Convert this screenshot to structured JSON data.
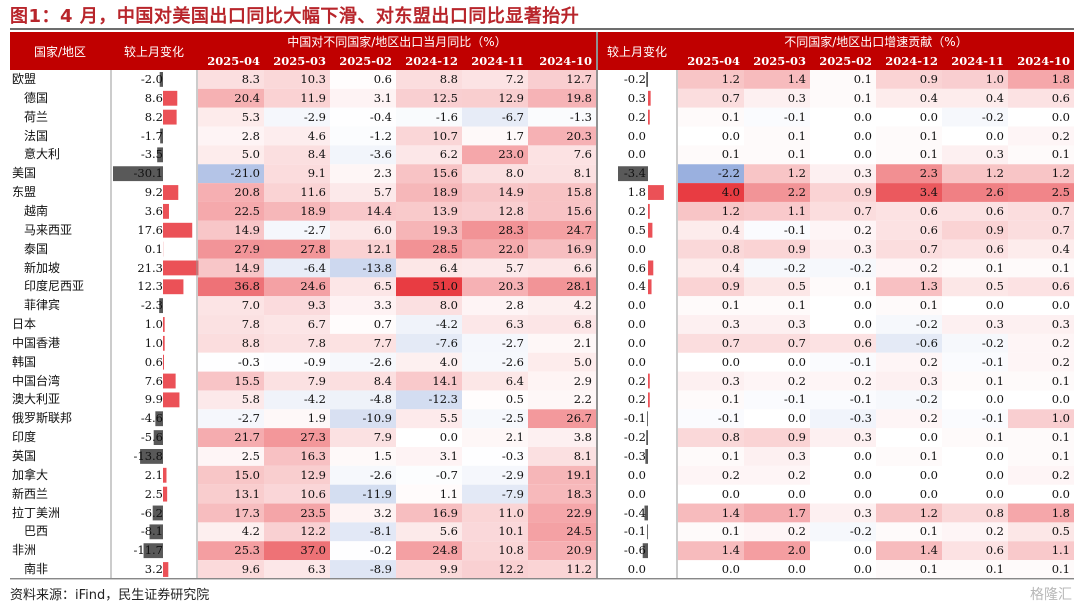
{
  "title": "图1：4 月，中国对美国出口同比大幅下滑、对东盟出口同比显著抬升",
  "source": "资料来源：iFind，民生证券研究院",
  "watermark": "格隆汇",
  "colors": {
    "header": "#c00000",
    "positive": "#e8252b",
    "negative": "#2f63c0",
    "bar_pos": "#e8323a",
    "bar_neg": "#1a1a1a"
  },
  "chart_data": {
    "type": "table",
    "headers": {
      "region": "国家/地区",
      "change1": "较上月变化",
      "group1": "中国对不同国家/地区出口当月同比（%）",
      "change2": "较上月变化",
      "group2": "不同国家/地区出口增速贡献（%）",
      "periods": [
        "2025-04",
        "2025-03",
        "2025-02",
        "2024-12",
        "2024-11",
        "2024-10"
      ]
    },
    "rows": [
      {
        "name": "欧盟",
        "indent": false,
        "change_yoy": -2.0,
        "yoy": [
          8.3,
          10.3,
          0.6,
          8.8,
          7.2,
          12.7
        ],
        "change_contrib": -0.2,
        "contrib": [
          1.2,
          1.4,
          0.1,
          0.9,
          1.0,
          1.8
        ]
      },
      {
        "name": "德国",
        "indent": true,
        "change_yoy": 8.6,
        "yoy": [
          20.4,
          11.9,
          3.1,
          12.5,
          12.9,
          19.8
        ],
        "change_contrib": 0.3,
        "contrib": [
          0.7,
          0.3,
          0.1,
          0.4,
          0.4,
          0.6
        ]
      },
      {
        "name": "荷兰",
        "indent": true,
        "change_yoy": 8.2,
        "yoy": [
          5.3,
          -2.9,
          -0.4,
          -1.6,
          -6.7,
          -1.3
        ],
        "change_contrib": 0.2,
        "contrib": [
          0.1,
          -0.1,
          0.0,
          0.0,
          -0.2,
          0.0
        ]
      },
      {
        "name": "法国",
        "indent": true,
        "change_yoy": -1.7,
        "yoy": [
          2.8,
          4.6,
          -1.2,
          10.7,
          1.7,
          20.3
        ],
        "change_contrib": 0.0,
        "contrib": [
          0.0,
          0.1,
          0.0,
          0.1,
          0.0,
          0.2
        ]
      },
      {
        "name": "意大利",
        "indent": true,
        "change_yoy": -3.5,
        "yoy": [
          5.0,
          8.4,
          -3.6,
          6.2,
          23.0,
          7.6
        ],
        "change_contrib": 0.0,
        "contrib": [
          0.1,
          0.1,
          0.0,
          0.1,
          0.3,
          0.1
        ]
      },
      {
        "name": "美国",
        "indent": false,
        "change_yoy": -30.1,
        "yoy": [
          -21.0,
          9.1,
          2.3,
          15.6,
          8.0,
          8.1
        ],
        "change_contrib": -3.4,
        "contrib": [
          -2.2,
          1.2,
          0.3,
          2.3,
          1.2,
          1.2
        ]
      },
      {
        "name": "东盟",
        "indent": false,
        "change_yoy": 9.2,
        "yoy": [
          20.8,
          11.6,
          5.7,
          18.9,
          14.9,
          15.8
        ],
        "change_contrib": 1.8,
        "contrib": [
          4.0,
          2.2,
          0.9,
          3.4,
          2.6,
          2.5
        ]
      },
      {
        "name": "越南",
        "indent": true,
        "change_yoy": 3.6,
        "yoy": [
          22.5,
          18.9,
          14.4,
          13.9,
          12.8,
          15.6
        ],
        "change_contrib": 0.2,
        "contrib": [
          1.2,
          1.1,
          0.7,
          0.6,
          0.6,
          0.7
        ]
      },
      {
        "name": "马来西亚",
        "indent": true,
        "change_yoy": 17.6,
        "yoy": [
          14.9,
          -2.7,
          6.0,
          19.3,
          28.3,
          24.7
        ],
        "change_contrib": 0.5,
        "contrib": [
          0.4,
          -0.1,
          0.2,
          0.6,
          0.9,
          0.7
        ]
      },
      {
        "name": "泰国",
        "indent": true,
        "change_yoy": 0.1,
        "yoy": [
          27.9,
          27.8,
          12.1,
          28.5,
          22.0,
          16.9
        ],
        "change_contrib": 0.0,
        "contrib": [
          0.8,
          0.9,
          0.3,
          0.7,
          0.6,
          0.4
        ]
      },
      {
        "name": "新加坡",
        "indent": true,
        "change_yoy": 21.3,
        "yoy": [
          14.9,
          -6.4,
          -13.8,
          6.4,
          5.7,
          6.6
        ],
        "change_contrib": 0.6,
        "contrib": [
          0.4,
          -0.2,
          -0.2,
          0.2,
          0.1,
          0.1
        ]
      },
      {
        "name": "印度尼西亚",
        "indent": true,
        "change_yoy": 12.3,
        "yoy": [
          36.8,
          24.6,
          6.5,
          51.0,
          20.3,
          28.1
        ],
        "change_contrib": 0.4,
        "contrib": [
          0.9,
          0.5,
          0.1,
          1.3,
          0.5,
          0.6
        ]
      },
      {
        "name": "菲律宾",
        "indent": true,
        "change_yoy": -2.3,
        "yoy": [
          7.0,
          9.3,
          3.3,
          8.0,
          2.8,
          4.2
        ],
        "change_contrib": 0.0,
        "contrib": [
          0.1,
          0.1,
          0.0,
          0.1,
          0.0,
          0.0
        ]
      },
      {
        "name": "日本",
        "indent": false,
        "change_yoy": 1.0,
        "yoy": [
          7.8,
          6.7,
          0.7,
          -4.2,
          6.3,
          6.8
        ],
        "change_contrib": 0.0,
        "contrib": [
          0.3,
          0.3,
          0.0,
          -0.2,
          0.3,
          0.3
        ]
      },
      {
        "name": "中国香港",
        "indent": false,
        "change_yoy": 1.0,
        "yoy": [
          8.8,
          7.8,
          7.7,
          -7.6,
          -2.7,
          2.1
        ],
        "change_contrib": 0.0,
        "contrib": [
          0.7,
          0.7,
          0.6,
          -0.6,
          -0.2,
          0.2
        ]
      },
      {
        "name": "韩国",
        "indent": false,
        "change_yoy": 0.6,
        "yoy": [
          -0.3,
          -0.9,
          -2.6,
          4.0,
          -2.6,
          5.0
        ],
        "change_contrib": 0.0,
        "contrib": [
          0.0,
          0.0,
          -0.1,
          0.2,
          -0.1,
          0.2
        ]
      },
      {
        "name": "中国台湾",
        "indent": false,
        "change_yoy": 7.6,
        "yoy": [
          15.5,
          7.9,
          8.4,
          14.1,
          6.4,
          2.9
        ],
        "change_contrib": 0.2,
        "contrib": [
          0.3,
          0.2,
          0.2,
          0.3,
          0.1,
          0.1
        ]
      },
      {
        "name": "澳大利亚",
        "indent": false,
        "change_yoy": 9.9,
        "yoy": [
          5.8,
          -4.2,
          -4.8,
          -12.3,
          0.5,
          2.2
        ],
        "change_contrib": 0.2,
        "contrib": [
          0.1,
          -0.1,
          -0.1,
          -0.2,
          0.0,
          0.0
        ]
      },
      {
        "name": "俄罗斯联邦",
        "indent": false,
        "change_yoy": -4.6,
        "yoy": [
          -2.7,
          1.9,
          -10.9,
          5.5,
          -2.5,
          26.7
        ],
        "change_contrib": -0.1,
        "contrib": [
          -0.1,
          0.0,
          -0.3,
          0.2,
          -0.1,
          1.0
        ]
      },
      {
        "name": "印度",
        "indent": false,
        "change_yoy": -5.6,
        "yoy": [
          21.7,
          27.3,
          7.9,
          0.0,
          2.1,
          3.8
        ],
        "change_contrib": -0.2,
        "contrib": [
          0.8,
          0.9,
          0.3,
          0.0,
          0.1,
          0.1
        ]
      },
      {
        "name": "英国",
        "indent": false,
        "change_yoy": -13.8,
        "yoy": [
          2.5,
          16.3,
          1.5,
          3.1,
          -0.3,
          8.1
        ],
        "change_contrib": -0.3,
        "contrib": [
          0.1,
          0.3,
          0.0,
          0.1,
          0.0,
          0.1
        ]
      },
      {
        "name": "加拿大",
        "indent": false,
        "change_yoy": 2.1,
        "yoy": [
          15.0,
          12.9,
          -2.6,
          -0.7,
          -2.9,
          19.1
        ],
        "change_contrib": 0.0,
        "contrib": [
          0.2,
          0.2,
          0.0,
          0.0,
          0.0,
          0.2
        ]
      },
      {
        "name": "新西兰",
        "indent": false,
        "change_yoy": 2.5,
        "yoy": [
          13.1,
          10.6,
          -11.9,
          1.1,
          -7.9,
          18.3
        ],
        "change_contrib": 0.0,
        "contrib": [
          0.0,
          0.0,
          0.0,
          0.0,
          0.0,
          0.0
        ]
      },
      {
        "name": "拉丁美洲",
        "indent": false,
        "change_yoy": -6.2,
        "yoy": [
          17.3,
          23.5,
          3.2,
          16.9,
          11.0,
          22.9
        ],
        "change_contrib": -0.4,
        "contrib": [
          1.4,
          1.7,
          0.3,
          1.2,
          0.8,
          1.8
        ]
      },
      {
        "name": "巴西",
        "indent": true,
        "change_yoy": -8.1,
        "yoy": [
          4.2,
          12.2,
          -8.1,
          5.6,
          10.1,
          24.5
        ],
        "change_contrib": -0.1,
        "contrib": [
          0.1,
          0.2,
          -0.2,
          0.1,
          0.2,
          0.5
        ]
      },
      {
        "name": "非洲",
        "indent": false,
        "change_yoy": -11.7,
        "yoy": [
          25.3,
          37.0,
          -0.2,
          24.8,
          10.8,
          20.9
        ],
        "change_contrib": -0.6,
        "contrib": [
          1.4,
          2.0,
          0.0,
          1.4,
          0.6,
          1.1
        ]
      },
      {
        "name": "南非",
        "indent": true,
        "change_yoy": 3.2,
        "yoy": [
          9.6,
          6.3,
          -8.9,
          9.9,
          12.2,
          11.2
        ],
        "change_contrib": 0.0,
        "contrib": [
          0.0,
          0.0,
          0.0,
          0.1,
          0.1,
          0.1
        ]
      }
    ]
  }
}
